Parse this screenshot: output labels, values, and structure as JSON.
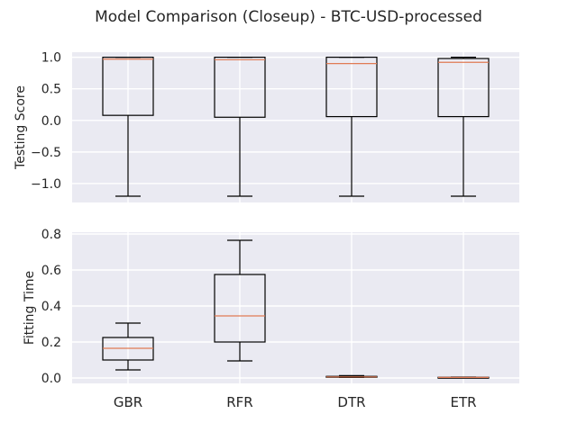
{
  "figure": {
    "title": "Model Comparison (Closeup) - BTC-USD-processed",
    "background": "#ffffff",
    "panel_color": "#eaeaf2",
    "grid_color": "#ffffff",
    "box_color": "#000000",
    "median_color": "#e07b54"
  },
  "chart_data": [
    {
      "type": "box",
      "ylabel": "Testing Score",
      "categories": [
        "GBR",
        "RFR",
        "DTR",
        "ETR"
      ],
      "show_xticklabels": false,
      "ylim": [
        -1.3,
        1.08
      ],
      "yticks": [
        1.0,
        0.5,
        0.0,
        -0.5,
        -1.0
      ],
      "yticklabels": [
        "1.0",
        "0.5",
        "0.0",
        "−0.5",
        "−1.0"
      ],
      "grid": true,
      "boxes": [
        {
          "whisker_low": -1.2,
          "q1": 0.08,
          "median": 0.97,
          "q3": 1.0,
          "whisker_high": 1.0
        },
        {
          "whisker_low": -1.2,
          "q1": 0.05,
          "median": 0.96,
          "q3": 1.0,
          "whisker_high": 1.0
        },
        {
          "whisker_low": -1.2,
          "q1": 0.06,
          "median": 0.9,
          "q3": 1.0,
          "whisker_high": 1.0
        },
        {
          "whisker_low": -1.2,
          "q1": 0.06,
          "median": 0.92,
          "q3": 0.98,
          "whisker_high": 1.0
        }
      ]
    },
    {
      "type": "box",
      "ylabel": "Fitting Time",
      "categories": [
        "GBR",
        "RFR",
        "DTR",
        "ETR"
      ],
      "show_xticklabels": true,
      "ylim": [
        -0.03,
        0.81
      ],
      "yticks": [
        0.8,
        0.6,
        0.4,
        0.2,
        0.0
      ],
      "yticklabels": [
        "0.8",
        "0.6",
        "0.4",
        "0.2",
        "0.0"
      ],
      "grid": true,
      "boxes": [
        {
          "whisker_low": 0.045,
          "q1": 0.1,
          "median": 0.165,
          "q3": 0.225,
          "whisker_high": 0.305
        },
        {
          "whisker_low": 0.095,
          "q1": 0.2,
          "median": 0.345,
          "q3": 0.575,
          "whisker_high": 0.765
        },
        {
          "whisker_low": 0.003,
          "q1": 0.004,
          "median": 0.006,
          "q3": 0.009,
          "whisker_high": 0.013
        },
        {
          "whisker_low": 0.001,
          "q1": 0.002,
          "median": 0.003,
          "q3": 0.004,
          "whisker_high": 0.005
        }
      ]
    }
  ]
}
